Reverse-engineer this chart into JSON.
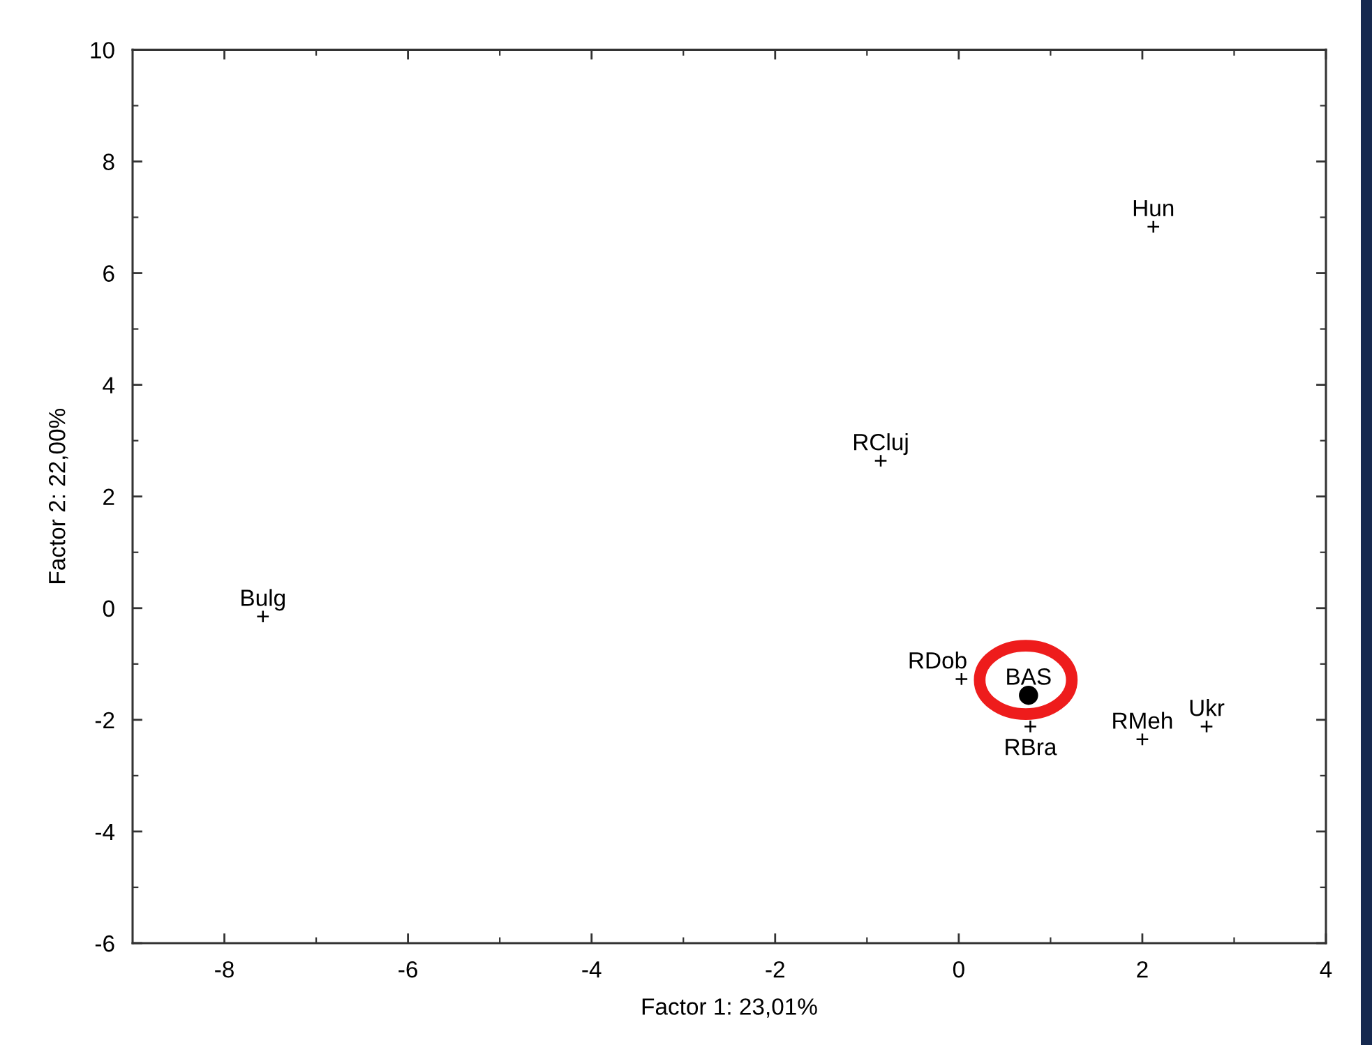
{
  "chart_data": {
    "type": "scatter",
    "xlabel": "Factor 1: 23,01%",
    "ylabel": "Factor 2: 22,00%",
    "xlim": [
      -9,
      4
    ],
    "ylim": [
      -6,
      10
    ],
    "xticks": [
      -8,
      -6,
      -4,
      -2,
      0,
      2,
      4
    ],
    "yticks": [
      -6,
      -4,
      -2,
      0,
      2,
      4,
      6,
      8,
      10
    ],
    "marker": "cross",
    "series": [
      {
        "name": "Bulg",
        "color": "#000000",
        "x": [
          -7.58
        ],
        "values": [
          -0.15
        ]
      },
      {
        "name": "RCluj",
        "color": "#000000",
        "x": [
          -0.85
        ],
        "values": [
          2.64
        ]
      },
      {
        "name": "Hun",
        "color": "#000000",
        "x": [
          2.12
        ],
        "values": [
          6.83
        ]
      },
      {
        "name": "RDob",
        "color": "#000000",
        "x": [
          0.03
        ],
        "values": [
          -1.27
        ]
      },
      {
        "name": "BAS",
        "color": "#000000",
        "marker": "circle",
        "x": [
          0.76
        ],
        "values": [
          -1.56
        ]
      },
      {
        "name": "RBra",
        "color": "#000000",
        "x": [
          0.78
        ],
        "values": [
          -2.12
        ]
      },
      {
        "name": "RMeh",
        "color": "#000000",
        "x": [
          2.0
        ],
        "values": [
          -2.35
        ]
      },
      {
        "name": "Ukr",
        "color": "#000000",
        "x": [
          2.7
        ],
        "values": [
          -2.12
        ]
      }
    ]
  }
}
